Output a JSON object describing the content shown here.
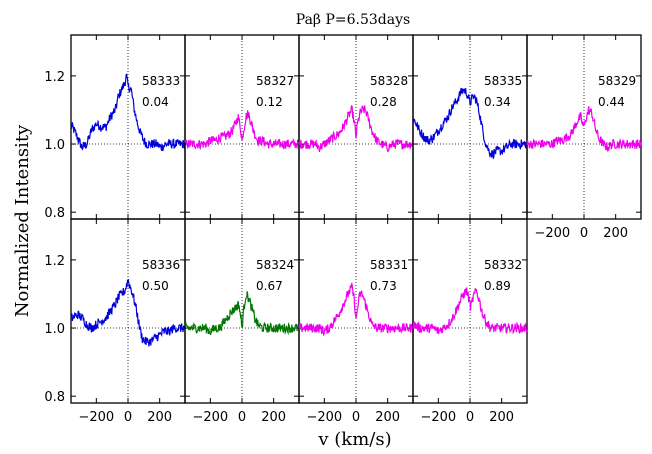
{
  "chart_data": {
    "type": "line",
    "title": "Paβ    P=6.53days",
    "xlabel": "v (km/s)",
    "ylabel": "Normalized Intensity",
    "xlim": [
      -360,
      360
    ],
    "ylim": [
      0.78,
      1.32
    ],
    "x_ticks": [
      -200,
      0,
      200
    ],
    "x_tick_labels": [
      "−200",
      "0",
      "200"
    ],
    "y_ticks": [
      0.8,
      1.0,
      1.2
    ],
    "y_tick_labels": [
      "0.8",
      "1.0",
      "1.2"
    ],
    "reference_lines": {
      "x": 0,
      "y": 1.0,
      "style": "dotted"
    },
    "panels": [
      {
        "mjd": "58333",
        "phase": "0.04",
        "color": "#0000dd",
        "row": 0,
        "col": 0,
        "points": [
          [
            -350,
            1.05
          ],
          [
            -320,
            1.02
          ],
          [
            -290,
            0.99
          ],
          [
            -260,
            1.0
          ],
          [
            -230,
            1.04
          ],
          [
            -200,
            1.06
          ],
          [
            -170,
            1.05
          ],
          [
            -140,
            1.05
          ],
          [
            -110,
            1.08
          ],
          [
            -80,
            1.1
          ],
          [
            -60,
            1.14
          ],
          [
            -40,
            1.16
          ],
          [
            -20,
            1.18
          ],
          [
            -10,
            1.2
          ],
          [
            0,
            1.17
          ],
          [
            20,
            1.16
          ],
          [
            40,
            1.1
          ],
          [
            60,
            1.06
          ],
          [
            80,
            1.03
          ],
          [
            100,
            1.01
          ],
          [
            120,
            1.0
          ],
          [
            150,
            1.0
          ],
          [
            180,
            1.0
          ],
          [
            210,
            0.99
          ],
          [
            240,
            1.0
          ],
          [
            270,
            1.0
          ],
          [
            300,
            1.0
          ],
          [
            330,
            1.0
          ],
          [
            360,
            1.0
          ]
        ]
      },
      {
        "mjd": "58327",
        "phase": "0.12",
        "color": "#ee00ee",
        "row": 0,
        "col": 1,
        "points": [
          [
            -350,
            1.0
          ],
          [
            -320,
            1.0
          ],
          [
            -290,
            1.0
          ],
          [
            -260,
            1.0
          ],
          [
            -230,
            1.0
          ],
          [
            -200,
            1.01
          ],
          [
            -170,
            1.01
          ],
          [
            -140,
            1.02
          ],
          [
            -110,
            1.02
          ],
          [
            -80,
            1.03
          ],
          [
            -60,
            1.04
          ],
          [
            -40,
            1.06
          ],
          [
            -25,
            1.08
          ],
          [
            -10,
            1.05
          ],
          [
            0,
            1.01
          ],
          [
            10,
            1.04
          ],
          [
            25,
            1.08
          ],
          [
            40,
            1.09
          ],
          [
            60,
            1.06
          ],
          [
            80,
            1.03
          ],
          [
            100,
            1.01
          ],
          [
            130,
            1.01
          ],
          [
            160,
            1.0
          ],
          [
            200,
            1.0
          ],
          [
            240,
            1.0
          ],
          [
            280,
            1.0
          ],
          [
            320,
            1.0
          ],
          [
            360,
            1.0
          ]
        ]
      },
      {
        "mjd": "58328",
        "phase": "0.28",
        "color": "#ee00ee",
        "row": 0,
        "col": 2,
        "points": [
          [
            -350,
            1.0
          ],
          [
            -320,
            1.0
          ],
          [
            -290,
            1.0
          ],
          [
            -260,
            1.0
          ],
          [
            -230,
            0.99
          ],
          [
            -200,
            1.0
          ],
          [
            -170,
            1.01
          ],
          [
            -140,
            1.02
          ],
          [
            -110,
            1.03
          ],
          [
            -80,
            1.05
          ],
          [
            -60,
            1.07
          ],
          [
            -40,
            1.09
          ],
          [
            -25,
            1.1
          ],
          [
            -10,
            1.06
          ],
          [
            0,
            1.02
          ],
          [
            10,
            1.06
          ],
          [
            25,
            1.09
          ],
          [
            40,
            1.1
          ],
          [
            60,
            1.1
          ],
          [
            80,
            1.07
          ],
          [
            100,
            1.04
          ],
          [
            130,
            1.01
          ],
          [
            160,
            1.0
          ],
          [
            200,
            0.99
          ],
          [
            240,
            1.0
          ],
          [
            280,
            1.0
          ],
          [
            320,
            1.0
          ],
          [
            360,
            1.0
          ]
        ]
      },
      {
        "mjd": "58335",
        "phase": "0.34",
        "color": "#0000dd",
        "row": 0,
        "col": 3,
        "points": [
          [
            -350,
            1.07
          ],
          [
            -320,
            1.04
          ],
          [
            -290,
            1.02
          ],
          [
            -260,
            1.01
          ],
          [
            -230,
            1.02
          ],
          [
            -200,
            1.04
          ],
          [
            -170,
            1.06
          ],
          [
            -140,
            1.08
          ],
          [
            -110,
            1.11
          ],
          [
            -80,
            1.13
          ],
          [
            -60,
            1.15
          ],
          [
            -40,
            1.16
          ],
          [
            -20,
            1.15
          ],
          [
            0,
            1.12
          ],
          [
            20,
            1.14
          ],
          [
            40,
            1.13
          ],
          [
            60,
            1.09
          ],
          [
            80,
            1.04
          ],
          [
            100,
            1.0
          ],
          [
            120,
            0.98
          ],
          [
            140,
            0.97
          ],
          [
            170,
            0.98
          ],
          [
            200,
            0.98
          ],
          [
            230,
            0.99
          ],
          [
            260,
            1.0
          ],
          [
            290,
            1.0
          ],
          [
            320,
            1.0
          ],
          [
            360,
            1.0
          ]
        ]
      },
      {
        "mjd": "58329",
        "phase": "0.44",
        "color": "#ee00ee",
        "row": 0,
        "col": 4,
        "points": [
          [
            -350,
            1.0
          ],
          [
            -320,
            1.0
          ],
          [
            -290,
            1.0
          ],
          [
            -260,
            1.0
          ],
          [
            -230,
            1.0
          ],
          [
            -200,
            1.0
          ],
          [
            -170,
            1.01
          ],
          [
            -140,
            1.01
          ],
          [
            -110,
            1.02
          ],
          [
            -80,
            1.03
          ],
          [
            -60,
            1.05
          ],
          [
            -40,
            1.07
          ],
          [
            -20,
            1.08
          ],
          [
            -10,
            1.06
          ],
          [
            0,
            1.05
          ],
          [
            15,
            1.08
          ],
          [
            30,
            1.1
          ],
          [
            50,
            1.09
          ],
          [
            70,
            1.05
          ],
          [
            90,
            1.02
          ],
          [
            120,
            1.0
          ],
          [
            150,
            0.99
          ],
          [
            180,
            1.0
          ],
          [
            220,
            1.0
          ],
          [
            260,
            1.0
          ],
          [
            300,
            1.0
          ],
          [
            330,
            1.0
          ],
          [
            360,
            1.0
          ]
        ]
      },
      {
        "mjd": "58336",
        "phase": "0.50",
        "color": "#0000dd",
        "row": 1,
        "col": 0,
        "points": [
          [
            -350,
            1.03
          ],
          [
            -320,
            1.04
          ],
          [
            -290,
            1.03
          ],
          [
            -260,
            1.01
          ],
          [
            -230,
            1.0
          ],
          [
            -200,
            1.01
          ],
          [
            -170,
            1.02
          ],
          [
            -140,
            1.03
          ],
          [
            -110,
            1.05
          ],
          [
            -80,
            1.07
          ],
          [
            -60,
            1.09
          ],
          [
            -40,
            1.1
          ],
          [
            -20,
            1.11
          ],
          [
            0,
            1.14
          ],
          [
            15,
            1.12
          ],
          [
            30,
            1.1
          ],
          [
            50,
            1.06
          ],
          [
            70,
            1.01
          ],
          [
            90,
            0.97
          ],
          [
            110,
            0.96
          ],
          [
            140,
            0.96
          ],
          [
            170,
            0.97
          ],
          [
            200,
            0.98
          ],
          [
            230,
            0.99
          ],
          [
            260,
            0.99
          ],
          [
            290,
            1.0
          ],
          [
            320,
            1.0
          ],
          [
            360,
            1.0
          ]
        ]
      },
      {
        "mjd": "58324",
        "phase": "0.67",
        "color": "#007700",
        "row": 1,
        "col": 1,
        "points": [
          [
            -350,
            1.0
          ],
          [
            -320,
            1.0
          ],
          [
            -290,
            1.0
          ],
          [
            -260,
            1.0
          ],
          [
            -230,
            1.0
          ],
          [
            -200,
            0.99
          ],
          [
            -170,
            1.0
          ],
          [
            -140,
            1.0
          ],
          [
            -110,
            1.02
          ],
          [
            -80,
            1.04
          ],
          [
            -60,
            1.05
          ],
          [
            -40,
            1.06
          ],
          [
            -20,
            1.07
          ],
          [
            -10,
            1.04
          ],
          [
            0,
            1.0
          ],
          [
            10,
            1.05
          ],
          [
            25,
            1.1
          ],
          [
            40,
            1.09
          ],
          [
            60,
            1.06
          ],
          [
            80,
            1.03
          ],
          [
            100,
            1.01
          ],
          [
            130,
            1.0
          ],
          [
            160,
            1.0
          ],
          [
            200,
            1.0
          ],
          [
            240,
            1.0
          ],
          [
            280,
            1.0
          ],
          [
            320,
            1.0
          ],
          [
            360,
            1.0
          ]
        ]
      },
      {
        "mjd": "58331",
        "phase": "0.73",
        "color": "#ee00ee",
        "row": 1,
        "col": 2,
        "points": [
          [
            -350,
            1.0
          ],
          [
            -320,
            1.0
          ],
          [
            -290,
            1.0
          ],
          [
            -260,
            1.0
          ],
          [
            -230,
            1.0
          ],
          [
            -200,
            0.99
          ],
          [
            -170,
            1.0
          ],
          [
            -140,
            1.02
          ],
          [
            -110,
            1.04
          ],
          [
            -80,
            1.07
          ],
          [
            -60,
            1.09
          ],
          [
            -40,
            1.11
          ],
          [
            -25,
            1.12
          ],
          [
            -10,
            1.08
          ],
          [
            0,
            1.02
          ],
          [
            10,
            1.06
          ],
          [
            25,
            1.1
          ],
          [
            40,
            1.1
          ],
          [
            60,
            1.07
          ],
          [
            80,
            1.04
          ],
          [
            100,
            1.01
          ],
          [
            130,
            1.0
          ],
          [
            160,
            1.0
          ],
          [
            200,
            1.0
          ],
          [
            240,
            1.0
          ],
          [
            280,
            1.0
          ],
          [
            320,
            1.0
          ],
          [
            360,
            1.0
          ]
        ]
      },
      {
        "mjd": "58332",
        "phase": "0.89",
        "color": "#ee00ee",
        "row": 1,
        "col": 3,
        "points": [
          [
            -350,
            1.01
          ],
          [
            -320,
            1.0
          ],
          [
            -290,
            1.0
          ],
          [
            -260,
            1.0
          ],
          [
            -230,
            1.0
          ],
          [
            -200,
            0.99
          ],
          [
            -170,
            1.0
          ],
          [
            -140,
            1.01
          ],
          [
            -110,
            1.03
          ],
          [
            -80,
            1.06
          ],
          [
            -60,
            1.08
          ],
          [
            -40,
            1.1
          ],
          [
            -20,
            1.11
          ],
          [
            -5,
            1.08
          ],
          [
            5,
            1.06
          ],
          [
            20,
            1.09
          ],
          [
            40,
            1.11
          ],
          [
            60,
            1.08
          ],
          [
            80,
            1.04
          ],
          [
            100,
            1.02
          ],
          [
            130,
            1.0
          ],
          [
            160,
            1.0
          ],
          [
            200,
            1.0
          ],
          [
            240,
            1.0
          ],
          [
            280,
            1.0
          ],
          [
            320,
            1.0
          ],
          [
            360,
            1.0
          ]
        ]
      }
    ]
  }
}
